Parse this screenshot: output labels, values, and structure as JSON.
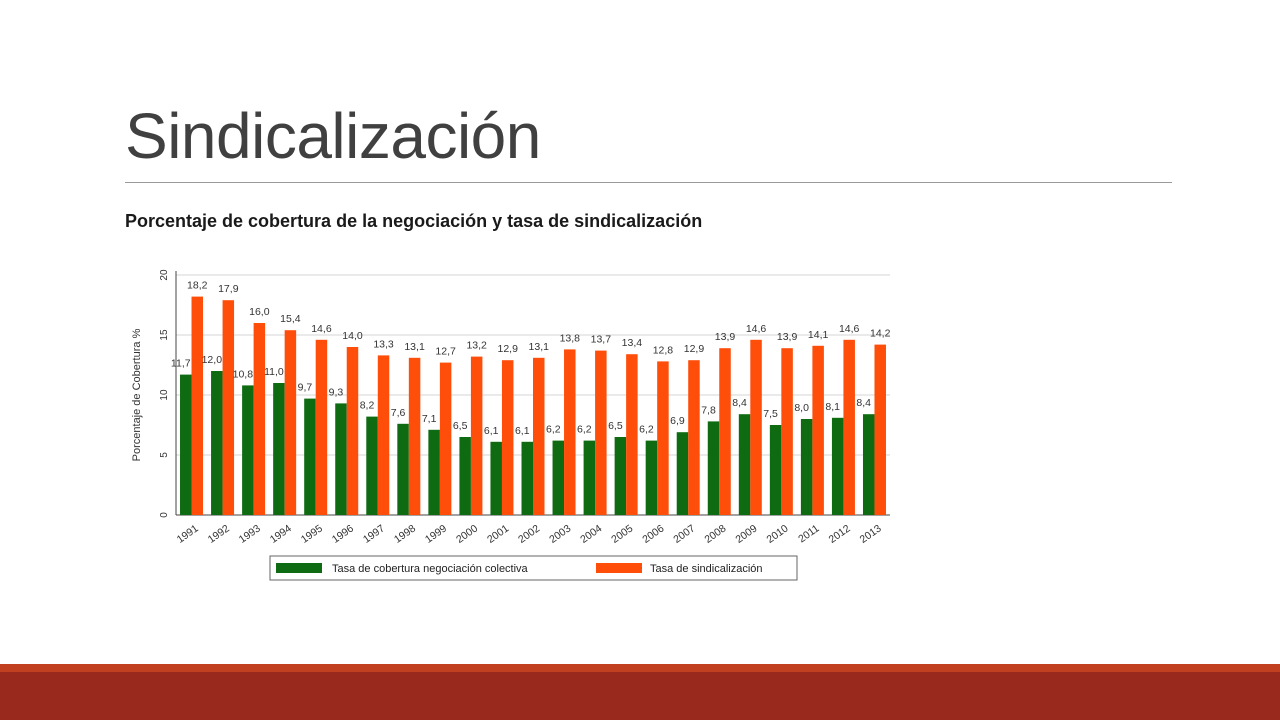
{
  "slide": {
    "title": "Sindicalización",
    "subtitle": "Porcentaje de cobertura de la negociación y tasa de sindicalización"
  },
  "colors": {
    "series_green": "#0e6b12",
    "series_orange": "#ff4d0a",
    "footer_dark": "#98291c",
    "footer_light": "#c0401f"
  },
  "chart_data": {
    "type": "bar",
    "ylabel": "Porcentaje de Cobertura %",
    "ylim": [
      0,
      20
    ],
    "yticks": [
      "0",
      "5",
      "10",
      "15",
      "20"
    ],
    "grid": true,
    "legend_position": "bottom",
    "categories": [
      "1991",
      "1992",
      "1993",
      "1994",
      "1995",
      "1996",
      "1997",
      "1998",
      "1999",
      "2000",
      "2001",
      "2002",
      "2003",
      "2004",
      "2005",
      "2006",
      "2007",
      "2008",
      "2009",
      "2010",
      "2011",
      "2012",
      "2013"
    ],
    "series": [
      {
        "name": "Tasa de cobertura negociación colectiva",
        "color": "#0e6b12",
        "values": [
          11.7,
          12.0,
          10.8,
          11.0,
          9.7,
          9.3,
          8.2,
          7.6,
          7.1,
          6.5,
          6.1,
          6.1,
          6.2,
          6.2,
          6.5,
          6.2,
          6.9,
          7.8,
          8.4,
          7.5,
          8.0,
          8.1,
          8.4
        ],
        "labels": [
          "11,7",
          "12,0",
          "10,8",
          "11,0",
          "9,7",
          "9,3",
          "8,2",
          "7,6",
          "7,1",
          "6,5",
          "6,1",
          "6,1",
          "6,2",
          "6,2",
          "6,5",
          "6,2",
          "6,9",
          "7,8",
          "8,4",
          "7,5",
          "8,0",
          "8,1",
          "8,4"
        ]
      },
      {
        "name": "Tasa de sindicalización",
        "color": "#ff4d0a",
        "values": [
          18.2,
          17.9,
          16.0,
          15.4,
          14.6,
          14.0,
          13.3,
          13.1,
          12.7,
          13.2,
          12.9,
          13.1,
          13.8,
          13.7,
          13.4,
          12.8,
          12.9,
          13.9,
          14.6,
          13.9,
          14.1,
          14.6,
          14.2
        ],
        "labels": [
          "18,2",
          "17,9",
          "16,0",
          "15,4",
          "14,6",
          "14,0",
          "13,3",
          "13,1",
          "12,7",
          "13,2",
          "12,9",
          "13,1",
          "13,8",
          "13,7",
          "13,4",
          "12,8",
          "12,9",
          "13,9",
          "14,6",
          "13,9",
          "14,1",
          "14,6",
          "14,2"
        ]
      }
    ]
  }
}
